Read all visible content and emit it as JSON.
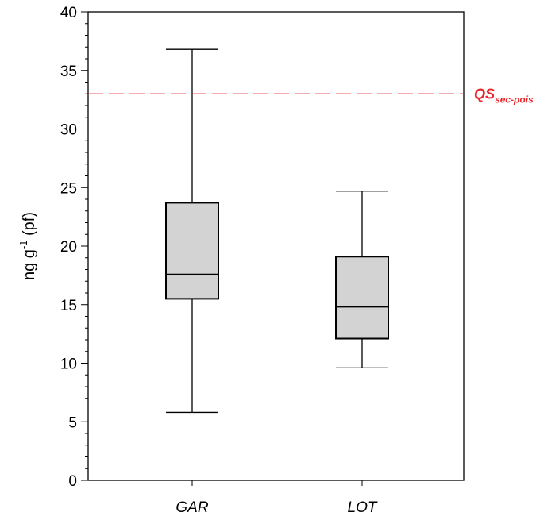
{
  "chart_data": {
    "type": "box",
    "ylabel": {
      "base": "ng g",
      "sup": "-1",
      "suffix": " (pf)"
    },
    "ylim": [
      0,
      40
    ],
    "major_ticks": [
      0,
      5,
      10,
      15,
      20,
      25,
      30,
      35,
      40
    ],
    "minor_tick_step": 1,
    "categories": [
      "GAR",
      "LOT"
    ],
    "boxes": [
      {
        "category": "GAR",
        "min": 5.8,
        "q1": 15.5,
        "median": 17.6,
        "q3": 23.7,
        "max": 36.8
      },
      {
        "category": "LOT",
        "min": 9.6,
        "q1": 12.1,
        "median": 14.8,
        "q3": 19.1,
        "max": 24.7
      }
    ],
    "reference_line": {
      "value": 33,
      "label_main": "QS",
      "label_sub": "sec-pois",
      "color": "#e8262b"
    },
    "box_fill": "#d3d3d3",
    "grid": false
  }
}
